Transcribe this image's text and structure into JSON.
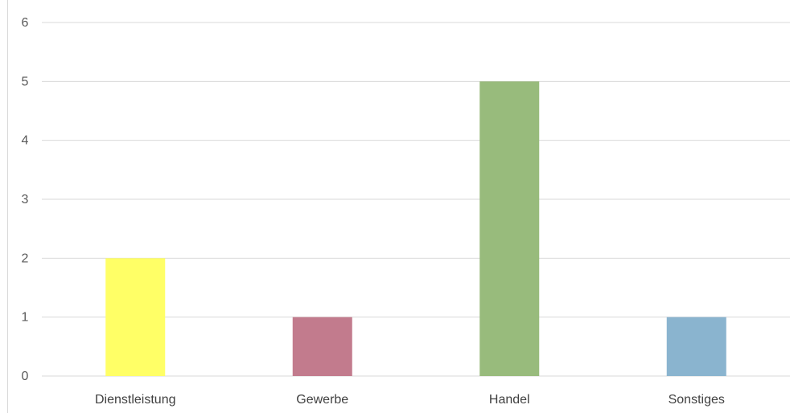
{
  "chart_data": {
    "type": "bar",
    "categories": [
      "Dienstleistung",
      "Gewerbe",
      "Handel",
      "Sonstiges"
    ],
    "values": [
      2,
      1,
      5,
      1
    ],
    "colors": [
      "#ffff66",
      "#c27b8d",
      "#98bb7c",
      "#8ab4cf"
    ],
    "title": "",
    "xlabel": "",
    "ylabel": "",
    "ylim": [
      0,
      6
    ],
    "yticks": [
      0,
      1,
      2,
      3,
      4,
      5,
      6
    ],
    "grid": true,
    "gridline_color": "#d9d9d9"
  }
}
